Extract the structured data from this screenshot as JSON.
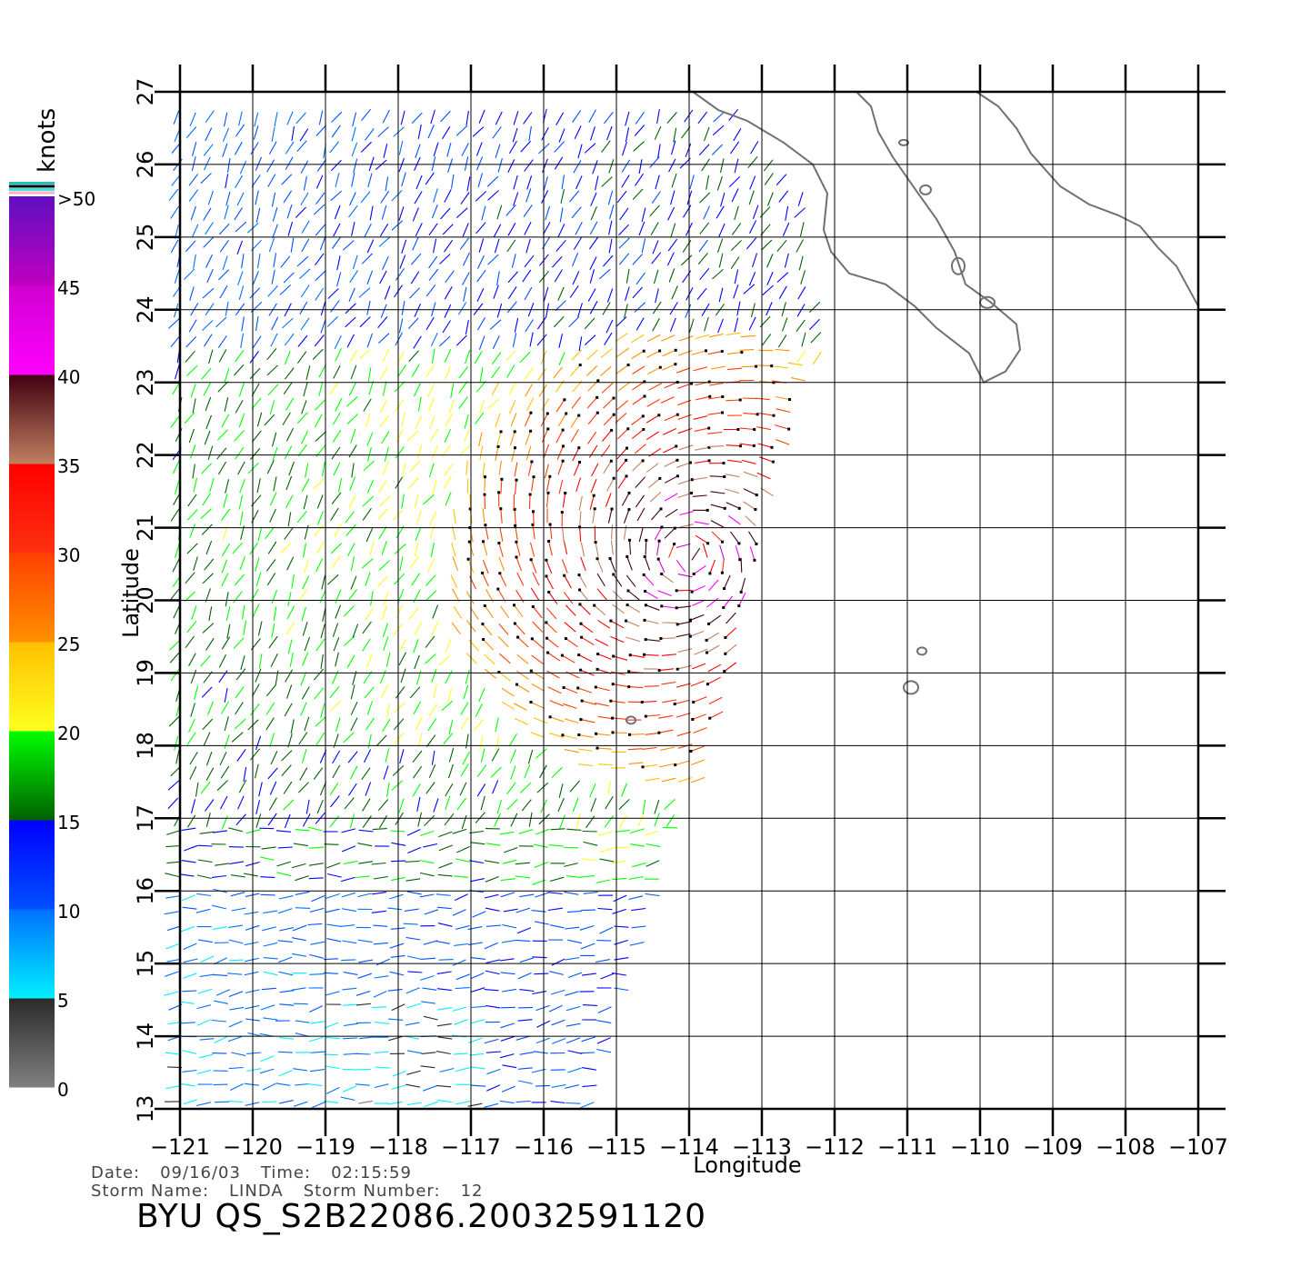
{
  "map": {
    "y_axis_label": "Latitude",
    "x_axis_label": "Longitude",
    "lat_ticks": [
      13,
      14,
      15,
      16,
      17,
      18,
      19,
      20,
      21,
      22,
      23,
      24,
      25,
      26,
      27
    ],
    "lon_ticks": [
      -121,
      -120,
      -119,
      -118,
      -117,
      -116,
      -115,
      -114,
      -113,
      -112,
      -111,
      -110,
      -109,
      -108,
      -107
    ],
    "lat_range": [
      13,
      27
    ],
    "lon_range": [
      -121,
      -107
    ],
    "grid": true,
    "coastline_color": "#707070",
    "storm_center": {
      "lat": 20.6,
      "lon": -114.0
    }
  },
  "legend": {
    "unit": "knots",
    "ticks": [
      "0",
      "5",
      "10",
      "15",
      "20",
      "25",
      "30",
      "35",
      "40",
      "45",
      ">50"
    ],
    "bands": [
      {
        "from": 0,
        "to": 5,
        "colors": [
          "#808080",
          "#2a2a2a"
        ]
      },
      {
        "from": 5,
        "to": 10,
        "colors": [
          "#00f0ff",
          "#0070ff"
        ]
      },
      {
        "from": 10,
        "to": 15,
        "colors": [
          "#0050ff",
          "#0000ff"
        ]
      },
      {
        "from": 15,
        "to": 20,
        "colors": [
          "#006000",
          "#00ff00"
        ]
      },
      {
        "from": 20,
        "to": 25,
        "colors": [
          "#ffff20",
          "#ffc000"
        ]
      },
      {
        "from": 25,
        "to": 30,
        "colors": [
          "#ff9000",
          "#ff4000"
        ]
      },
      {
        "from": 30,
        "to": 35,
        "colors": [
          "#ff3010",
          "#ff0000"
        ]
      },
      {
        "from": 35,
        "to": 40,
        "colors": [
          "#c08060",
          "#400010"
        ]
      },
      {
        "from": 40,
        "to": 45,
        "colors": [
          "#ff00ff",
          "#d000d0"
        ]
      },
      {
        "from": 45,
        "to": 50,
        "colors": [
          "#c000c0",
          "#6010c0"
        ]
      }
    ],
    "top_stripes": [
      "#20c0c0",
      "#000000",
      "#40e0e0",
      "#ffb0c0"
    ]
  },
  "footer": {
    "date_label": "Date:",
    "date_value": "09/16/03",
    "time_label": "Time:",
    "time_value": "02:15:59",
    "storm_name_label": "Storm Name:",
    "storm_name_value": "LINDA",
    "storm_number_label": "Storm Number:",
    "storm_number_value": "12",
    "title": "BYU QS_S2B22086.20032591120"
  }
}
